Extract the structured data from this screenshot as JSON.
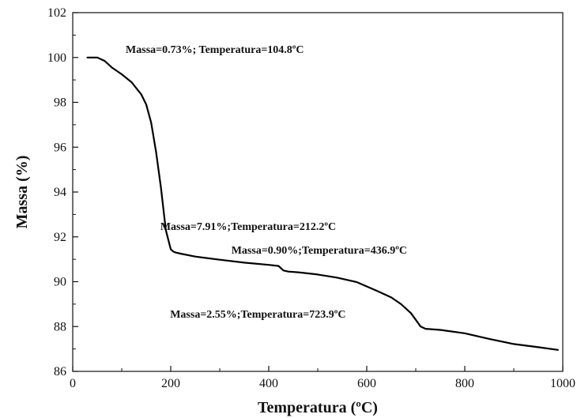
{
  "chart_data": {
    "type": "line",
    "xlabel": "Temperatura (ºC)",
    "ylabel": "Massa (%)",
    "xlim": [
      0,
      1000
    ],
    "ylim": [
      86,
      102
    ],
    "xticks": [
      0,
      200,
      400,
      600,
      800,
      1000
    ],
    "yticks": [
      86,
      88,
      90,
      92,
      94,
      96,
      98,
      100,
      102
    ],
    "grid": false,
    "series": [
      {
        "color": "#000000",
        "x": [
          30,
          50,
          65,
          80,
          100,
          120,
          140,
          150,
          160,
          170,
          180,
          190,
          200,
          205,
          210,
          220,
          250,
          300,
          350,
          400,
          420,
          430,
          440,
          460,
          500,
          540,
          580,
          620,
          650,
          670,
          690,
          700,
          710,
          720,
          750,
          800,
          850,
          900,
          950,
          990
        ],
        "y": [
          100.0,
          100.0,
          99.85,
          99.55,
          99.25,
          98.9,
          98.35,
          97.9,
          97.1,
          95.8,
          94.2,
          92.3,
          91.45,
          91.35,
          91.3,
          91.25,
          91.12,
          90.98,
          90.85,
          90.75,
          90.7,
          90.5,
          90.45,
          90.42,
          90.32,
          90.18,
          89.98,
          89.6,
          89.3,
          89.0,
          88.6,
          88.3,
          88.0,
          87.9,
          87.85,
          87.7,
          87.45,
          87.22,
          87.08,
          86.96
        ]
      }
    ],
    "annotations": [
      {
        "text": "Massa=0.73%; Temperatura=104.8ºC",
        "x": 290,
        "y": 100.2
      },
      {
        "text": "Massa=7.91%;Temperatura=212.2ºC",
        "x": 358,
        "y": 92.3
      },
      {
        "text": "Massa=0.90%;Temperatura=436.9ºC",
        "x": 503,
        "y": 91.25
      },
      {
        "text": "Massa=2.55%;Temperatura=723.9ºC",
        "x": 378,
        "y": 88.4
      }
    ]
  }
}
